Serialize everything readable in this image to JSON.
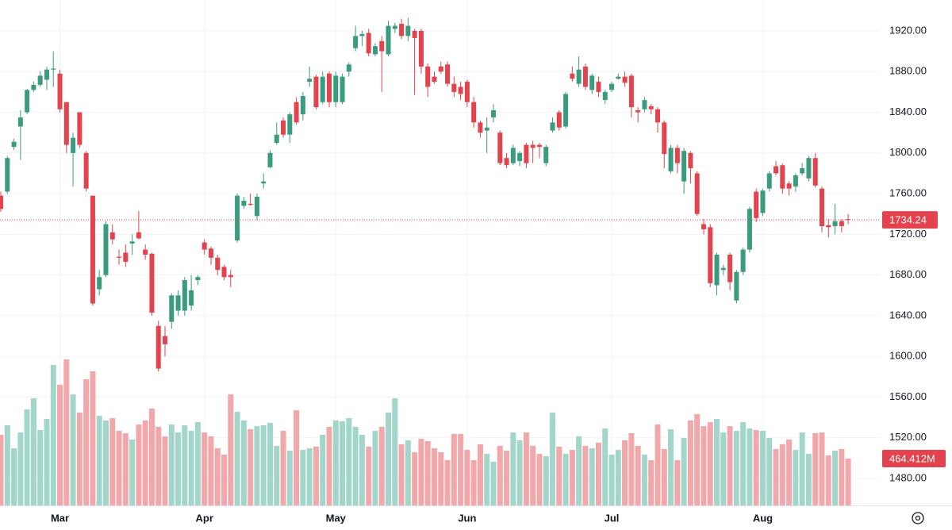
{
  "chart_data": {
    "type": "candlestick",
    "categories": [
      null,
      null,
      null,
      null,
      null,
      null,
      null,
      null,
      null,
      "Mar",
      null,
      null,
      null,
      null,
      null,
      null,
      null,
      null,
      null,
      null,
      null,
      null,
      null,
      null,
      null,
      null,
      null,
      null,
      null,
      null,
      null,
      "Apr",
      null,
      null,
      null,
      null,
      null,
      null,
      null,
      null,
      null,
      null,
      null,
      null,
      null,
      null,
      null,
      null,
      null,
      null,
      null,
      "May",
      null,
      null,
      null,
      null,
      null,
      null,
      null,
      null,
      null,
      null,
      null,
      null,
      null,
      null,
      null,
      null,
      null,
      null,
      null,
      "Jun",
      null,
      null,
      null,
      null,
      null,
      null,
      null,
      null,
      null,
      null,
      null,
      null,
      null,
      null,
      null,
      null,
      null,
      null,
      null,
      null,
      null,
      "Jul",
      null,
      null,
      null,
      null,
      null,
      null,
      null,
      null,
      null,
      null,
      null,
      null,
      null,
      null,
      null,
      null,
      null,
      null,
      null,
      null,
      null,
      null,
      "Aug",
      null,
      null,
      null,
      null,
      null,
      null,
      null,
      null,
      null,
      null,
      null,
      null,
      null
    ],
    "open": [
      1758,
      1762,
      1806,
      1826,
      1840,
      1862,
      1867,
      1872,
      1882,
      1878,
      1850,
      1800,
      1840,
      1800,
      1758,
      1666,
      1680,
      1722,
      1698,
      1702,
      1711,
      1722,
      1705,
      1701,
      1630,
      1620,
      1634,
      1645,
      1645,
      1650,
      1675,
      1712,
      1706,
      1697,
      1688,
      1680,
      1714,
      1748,
      1750,
      1738,
      1770,
      1786,
      1810,
      1832,
      1818,
      1850,
      1838,
      1870,
      1875,
      1850,
      1878,
      1850,
      1850,
      1880,
      1903,
      1915,
      1918,
      1897,
      1910,
      1897,
      1922,
      1927,
      1915,
      1920,
      1920,
      1885,
      1875,
      1885,
      1887,
      1868,
      1865,
      1870,
      1850,
      1830,
      1822,
      1835,
      1820,
      1795,
      1790,
      1792,
      1808,
      1808,
      1808,
      1790,
      1822,
      1840,
      1826,
      1878,
      1868,
      1885,
      1862,
      1870,
      1852,
      1862,
      1873,
      1875,
      1876,
      1842,
      1843,
      1846,
      1843,
      1830,
      1782,
      1805,
      1772,
      1800,
      1780,
      1730,
      1727,
      1670,
      1685,
      1700,
      1655,
      1683,
      1705,
      1762,
      1741,
      1765,
      1787,
      1788,
      1770,
      1767,
      1780,
      1775,
      1795,
      1765,
      1729,
      1728,
      1733,
      1735
    ],
    "high": [
      1762,
      1797,
      1814,
      1842,
      1863,
      1870,
      1880,
      1885,
      1900,
      1882,
      1850,
      1820,
      1840,
      1802,
      1758,
      1685,
      1733,
      1730,
      1705,
      1710,
      1720,
      1743,
      1710,
      1702,
      1635,
      1630,
      1662,
      1665,
      1678,
      1680,
      1680,
      1715,
      1708,
      1700,
      1690,
      1685,
      1760,
      1757,
      1760,
      1760,
      1780,
      1803,
      1830,
      1835,
      1840,
      1855,
      1860,
      1885,
      1877,
      1880,
      1880,
      1880,
      1878,
      1889,
      1925,
      1920,
      1922,
      1908,
      1915,
      1930,
      1928,
      1932,
      1933,
      1922,
      1922,
      1888,
      1880,
      1890,
      1890,
      1875,
      1870,
      1872,
      1855,
      1832,
      1835,
      1848,
      1822,
      1800,
      1808,
      1802,
      1810,
      1812,
      1810,
      1808,
      1835,
      1842,
      1860,
      1885,
      1895,
      1888,
      1878,
      1875,
      1862,
      1870,
      1878,
      1880,
      1878,
      1845,
      1855,
      1848,
      1845,
      1832,
      1808,
      1808,
      1805,
      1802,
      1782,
      1735,
      1730,
      1702,
      1690,
      1702,
      1685,
      1707,
      1747,
      1765,
      1765,
      1782,
      1792,
      1790,
      1772,
      1780,
      1790,
      1797,
      1800,
      1767,
      1735,
      1750,
      1735,
      1740
    ],
    "low": [
      1742,
      1760,
      1803,
      1793,
      1838,
      1860,
      1865,
      1862,
      1865,
      1840,
      1800,
      1767,
      1805,
      1762,
      1650,
      1660,
      1678,
      1710,
      1690,
      1688,
      1700,
      1715,
      1695,
      1640,
      1585,
      1600,
      1627,
      1640,
      1640,
      1645,
      1670,
      1700,
      1690,
      1680,
      1675,
      1668,
      1712,
      1745,
      1748,
      1734,
      1765,
      1785,
      1808,
      1815,
      1810,
      1828,
      1832,
      1865,
      1843,
      1848,
      1845,
      1845,
      1848,
      1875,
      1900,
      1905,
      1895,
      1895,
      1860,
      1895,
      1918,
      1912,
      1910,
      1857,
      1878,
      1855,
      1868,
      1878,
      1865,
      1855,
      1852,
      1845,
      1825,
      1815,
      1800,
      1830,
      1788,
      1785,
      1788,
      1787,
      1785,
      1790,
      1795,
      1787,
      1820,
      1822,
      1824,
      1870,
      1865,
      1862,
      1858,
      1855,
      1848,
      1860,
      1872,
      1865,
      1835,
      1830,
      1840,
      1838,
      1820,
      1785,
      1780,
      1780,
      1760,
      1770,
      1738,
      1720,
      1668,
      1660,
      1680,
      1665,
      1652,
      1680,
      1702,
      1732,
      1738,
      1762,
      1778,
      1760,
      1758,
      1762,
      1778,
      1772,
      1766,
      1722,
      1717,
      1720,
      1722,
      1730
    ],
    "close": [
      1745,
      1795,
      1811,
      1835,
      1862,
      1867,
      1876,
      1882,
      1883,
      1843,
      1808,
      1815,
      1808,
      1765,
      1652,
      1678,
      1730,
      1715,
      1697,
      1693,
      1713,
      1716,
      1700,
      1643,
      1588,
      1612,
      1660,
      1660,
      1675,
      1665,
      1678,
      1705,
      1697,
      1685,
      1678,
      1678,
      1758,
      1753,
      1749,
      1757,
      1772,
      1800,
      1818,
      1818,
      1838,
      1830,
      1856,
      1873,
      1845,
      1875,
      1850,
      1876,
      1875,
      1887,
      1915,
      1917,
      1898,
      1905,
      1900,
      1925,
      1925,
      1915,
      1925,
      1913,
      1885,
      1865,
      1870,
      1880,
      1868,
      1860,
      1858,
      1850,
      1830,
      1820,
      1825,
      1842,
      1790,
      1788,
      1805,
      1800,
      1790,
      1805,
      1806,
      1806,
      1830,
      1825,
      1858,
      1873,
      1882,
      1865,
      1876,
      1860,
      1860,
      1868,
      1875,
      1869,
      1845,
      1840,
      1852,
      1843,
      1830,
      1799,
      1805,
      1790,
      1802,
      1785,
      1740,
      1725,
      1672,
      1700,
      1687,
      1673,
      1683,
      1705,
      1745,
      1736,
      1763,
      1780,
      1780,
      1765,
      1765,
      1778,
      1785,
      1795,
      1768,
      1728,
      1727,
      1733,
      1728,
      1734.24
    ],
    "volume": [
      701,
      795,
      567,
      724,
      953,
      1063,
      748,
      858,
      1394,
      1197,
      1449,
      1102,
      921,
      1252,
      1331,
      890,
      843,
      866,
      740,
      717,
      654,
      803,
      843,
      961,
      780,
      685,
      803,
      724,
      795,
      740,
      827,
      724,
      685,
      567,
      504,
      1102,
      929,
      843,
      756,
      787,
      795,
      819,
      591,
      740,
      543,
      945,
      551,
      567,
      583,
      701,
      780,
      843,
      835,
      866,
      780,
      701,
      583,
      740,
      780,
      921,
      1063,
      606,
      646,
      528,
      661,
      638,
      567,
      528,
      449,
      709,
      709,
      551,
      449,
      606,
      512,
      433,
      591,
      543,
      724,
      646,
      724,
      591,
      512,
      488,
      921,
      583,
      512,
      551,
      685,
      591,
      567,
      622,
      764,
      504,
      551,
      646,
      717,
      591,
      504,
      449,
      803,
      559,
      756,
      449,
      669,
      843,
      906,
      787,
      827,
      858,
      724,
      787,
      740,
      827,
      764,
      748,
      740,
      669,
      559,
      606,
      654,
      551,
      724,
      512,
      717,
      724,
      496,
      543,
      559,
      464.412
    ],
    "volume_label": "464.412M",
    "ylim": [
      1453.5,
      1950.4
    ],
    "yticks": [
      {
        "value": 1480,
        "label": "1480.00"
      },
      {
        "value": 1520,
        "label": "1520.00"
      },
      {
        "value": 1560,
        "label": "1560.00"
      },
      {
        "value": 1600,
        "label": "1600.00"
      },
      {
        "value": 1640,
        "label": "1640.00"
      },
      {
        "value": 1680,
        "label": "1680.00"
      },
      {
        "value": 1720,
        "label": "1720.00"
      },
      {
        "value": 1760,
        "label": "1760.00"
      },
      {
        "value": 1800,
        "label": "1800.00"
      },
      {
        "value": 1840,
        "label": "1840.00"
      },
      {
        "value": 1880,
        "label": "1880.00"
      },
      {
        "value": 1920,
        "label": "1920.00"
      }
    ],
    "grid": true,
    "up_color": "#3b9b7e",
    "down_color": "#e2434d",
    "up_volume_color": "#a3d6cb",
    "down_volume_color": "#f2a8ab"
  }
}
